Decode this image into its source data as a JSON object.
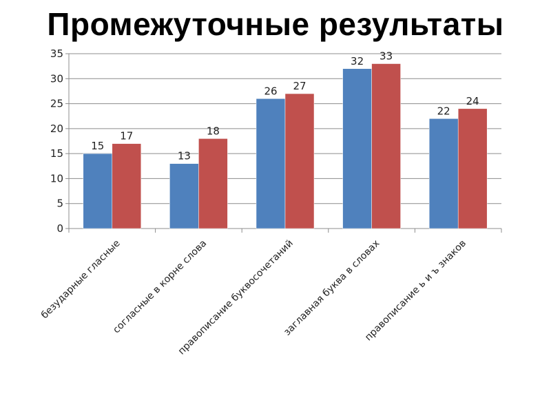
{
  "slide": {
    "title": "Промежуточные результаты"
  },
  "chart_data": {
    "type": "bar",
    "title": "",
    "xlabel": "",
    "ylabel": "",
    "ylim": [
      0,
      35
    ],
    "yticks": [
      0,
      5,
      10,
      15,
      20,
      25,
      30,
      35
    ],
    "grid": true,
    "categories": [
      "безударные гласные",
      "согласные в корне слова",
      "правописание буквосочетаний",
      "заглавная буква в словах",
      "правописание ь и ъ знаков"
    ],
    "series": [
      {
        "values": [
          15,
          13,
          26,
          32,
          22
        ],
        "color": "#4F81BD"
      },
      {
        "values": [
          17,
          18,
          27,
          33,
          24
        ],
        "color": "#C0504D"
      }
    ]
  }
}
